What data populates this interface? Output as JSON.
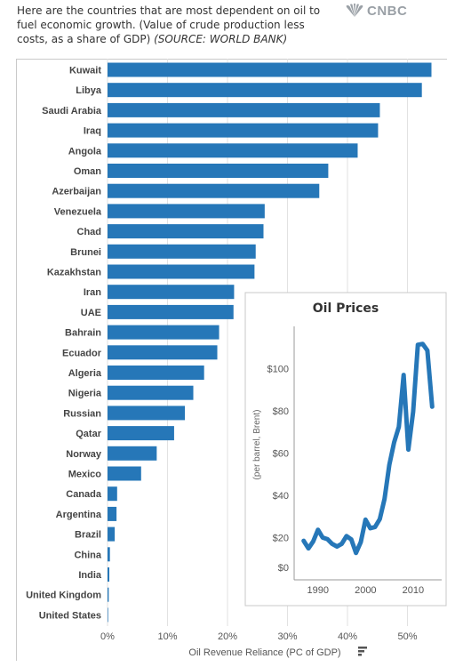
{
  "header": {
    "text": "Here are the countries that are most dependent on oil to fuel economic growth. (Value of crude production less costs, as a share of GDP) ",
    "source": "(SOURCE: WORLD BANK)",
    "logo_text": "CNBC"
  },
  "colors": {
    "bar": "#2677b8",
    "line": "#2677b8",
    "grid": "#e2e2e2",
    "inset_border": "#c8c8c8"
  },
  "chart_data": [
    {
      "type": "bar",
      "orientation": "horizontal",
      "title": "",
      "xlabel": "Oil Revenue Reliance (PC of GDP)",
      "ylabel": "",
      "xlim": [
        0,
        56
      ],
      "x_ticks": [
        0,
        10,
        20,
        30,
        40,
        50
      ],
      "x_tick_labels": [
        "0%",
        "10%",
        "20%",
        "30%",
        "40%",
        "50%"
      ],
      "grid": true,
      "categories": [
        "Kuwait",
        "Libya",
        "Saudi Arabia",
        "Iraq",
        "Angola",
        "Oman",
        "Azerbaijan",
        "Venezuela",
        "Chad",
        "Brunei",
        "Kazakhstan",
        "Iran",
        "UAE",
        "Bahrain",
        "Ecuador",
        "Algeria",
        "Nigeria",
        "Russian",
        "Qatar",
        "Norway",
        "Mexico",
        "Canada",
        "Argentina",
        "Brazil",
        "China",
        "India",
        "United Kingdom",
        "United States"
      ],
      "values": [
        54.0,
        52.4,
        45.4,
        45.1,
        41.7,
        36.8,
        35.3,
        26.2,
        26.0,
        24.7,
        24.5,
        21.1,
        21.0,
        18.6,
        18.3,
        16.1,
        14.3,
        12.9,
        11.1,
        8.2,
        5.6,
        1.6,
        1.5,
        1.2,
        0.4,
        0.3,
        0.2,
        0.1
      ]
    },
    {
      "type": "line",
      "title": "Oil Prices",
      "xlabel": "",
      "ylabel": "(per barrel, Brent)",
      "xlim": [
        1985,
        2016
      ],
      "ylim": [
        0,
        120
      ],
      "x_ticks": [
        1990,
        2000,
        2010
      ],
      "x_tick_labels": [
        "1990",
        "2000",
        "2010"
      ],
      "y_ticks": [
        0,
        20,
        40,
        60,
        80,
        100
      ],
      "y_tick_labels": [
        "$0",
        "$20",
        "$40",
        "$60",
        "$80",
        "$100"
      ],
      "grid": false,
      "x": [
        1987,
        1988,
        1989,
        1990,
        1991,
        1992,
        1993,
        1994,
        1995,
        1996,
        1997,
        1998,
        1999,
        2000,
        2001,
        2002,
        2003,
        2004,
        2005,
        2006,
        2007,
        2008,
        2009,
        2010,
        2011,
        2012,
        2013,
        2014
      ],
      "values": [
        18.5,
        14.9,
        18.2,
        23.7,
        20.0,
        19.3,
        17.0,
        15.8,
        17.0,
        20.7,
        19.1,
        12.7,
        17.9,
        28.5,
        24.4,
        25.0,
        28.8,
        38.3,
        54.5,
        65.1,
        72.4,
        97.0,
        61.7,
        79.6,
        111.3,
        111.7,
        108.6,
        82.0
      ]
    }
  ]
}
